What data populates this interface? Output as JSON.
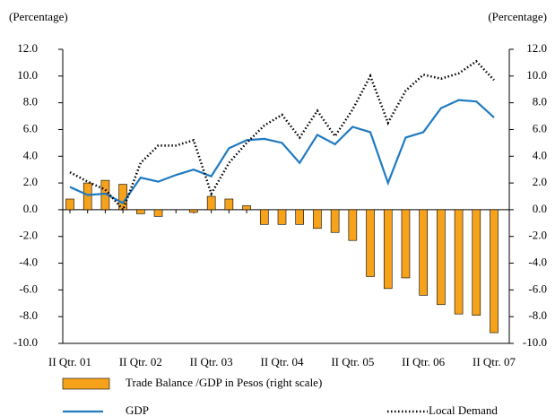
{
  "chart_data": {
    "type": "bar-line",
    "y_label": "(Percentage)",
    "y2_label": "(Percentage)",
    "categories": [
      "II Qtr. 01",
      null,
      null,
      null,
      "II Qtr. 02",
      null,
      null,
      null,
      "II Qtr. 03",
      null,
      null,
      null,
      "II Qtr. 04",
      null,
      null,
      null,
      "II Qtr. 05",
      null,
      null,
      null,
      "II Qtr. 06",
      null,
      null,
      null,
      "II Qtr. 07"
    ],
    "series": [
      {
        "name": "Trade Balance /GDP in Pesos (right scale)",
        "type": "bar",
        "axis": "y2",
        "color": "#f7a21b",
        "values": [
          0.8,
          2.0,
          2.2,
          1.9,
          -0.3,
          -0.5,
          0,
          -0.2,
          1.0,
          0.8,
          0.3,
          -1.1,
          -1.1,
          -1.1,
          -1.4,
          -1.7,
          -2.3,
          -5.0,
          -5.9,
          -5.1,
          -6.4,
          -7.1,
          -7.8,
          -7.9,
          -9.2
        ]
      },
      {
        "name": "GDP",
        "type": "line",
        "color": "#1f7ac0",
        "values": [
          1.7,
          1.1,
          1.2,
          0.5,
          2.4,
          2.1,
          2.6,
          3.0,
          2.5,
          4.6,
          5.2,
          5.3,
          5.0,
          3.5,
          5.6,
          4.9,
          6.2,
          5.8,
          2.0,
          5.4,
          5.8,
          7.6,
          8.2,
          8.1,
          6.9
        ]
      },
      {
        "name": "Local  Demand",
        "type": "line",
        "dashed": true,
        "color": "#000000",
        "values": [
          2.8,
          2.1,
          1.5,
          0.0,
          3.5,
          4.8,
          4.8,
          5.2,
          1.2,
          3.5,
          5.0,
          6.3,
          7.1,
          5.4,
          7.4,
          5.5,
          7.5,
          10.0,
          6.5,
          8.9,
          10.1,
          9.8,
          10.2,
          11.1,
          9.7
        ]
      }
    ],
    "ylim": [
      -10,
      12
    ],
    "yticks": [
      {
        "value": -10,
        "label": "-10.0"
      },
      {
        "value": -8,
        "label": "-8.0"
      },
      {
        "value": -6,
        "label": "-6.0"
      },
      {
        "value": -4,
        "label": "-4.0"
      },
      {
        "value": -2,
        "label": "-2.0"
      },
      {
        "value": 0,
        "label": "0.0"
      },
      {
        "value": 2,
        "label": "2.0"
      },
      {
        "value": 4,
        "label": "4.0"
      },
      {
        "value": 6,
        "label": "6.0"
      },
      {
        "value": 8,
        "label": "8.0"
      },
      {
        "value": 10,
        "label": "10.0"
      },
      {
        "value": 12,
        "label": "12.0"
      }
    ],
    "y2lim": [
      -10,
      12
    ],
    "y2ticks": [
      {
        "value": -10,
        "label": "-10.0"
      },
      {
        "value": -8,
        "label": "-8.0"
      },
      {
        "value": -6,
        "label": "-6.0"
      },
      {
        "value": -4,
        "label": "-4.0"
      },
      {
        "value": -2,
        "label": "-2.0"
      },
      {
        "value": 0,
        "label": "0.0"
      },
      {
        "value": 2,
        "label": "2.0"
      },
      {
        "value": 4,
        "label": "4.0"
      },
      {
        "value": 6,
        "label": "6.0"
      },
      {
        "value": 8,
        "label": "8.0"
      },
      {
        "value": 10,
        "label": "10.0"
      },
      {
        "value": 12,
        "label": "12.0"
      }
    ]
  }
}
